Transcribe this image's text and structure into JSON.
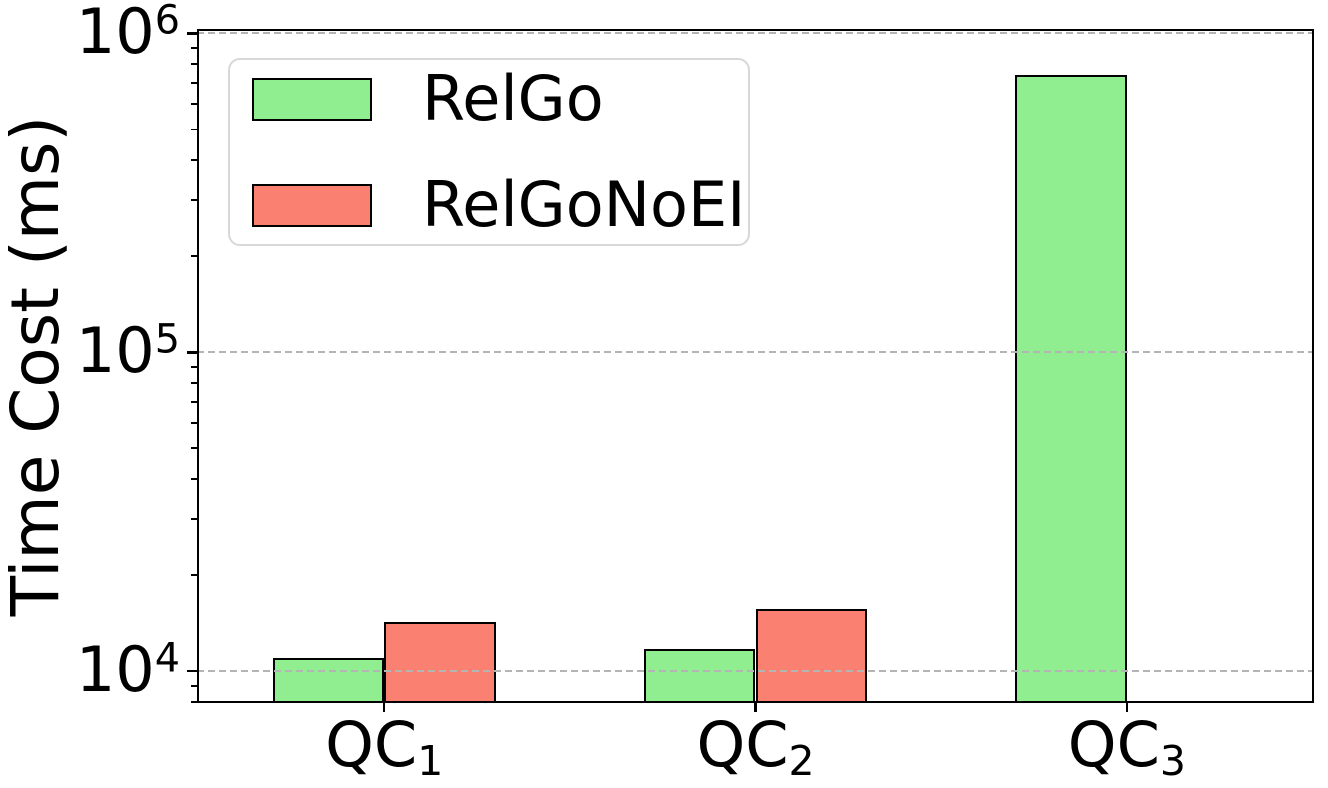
{
  "chart_data": {
    "type": "bar",
    "title": "",
    "xlabel": "",
    "ylabel": "Time Cost (ms)",
    "yscale": "log",
    "ylim": [
      7940,
      1033000
    ],
    "grid": {
      "axis": "y",
      "which": "major",
      "linestyle": "dashed",
      "color": "#b4b4b4",
      "drawn_over_bars": true
    },
    "categories": [
      {
        "base": "QC",
        "sub": "1"
      },
      {
        "base": "QC",
        "sub": "2"
      },
      {
        "base": "QC",
        "sub": "3"
      }
    ],
    "series": [
      {
        "name": "RelGo",
        "color": "#90EE90",
        "edge_color": "#000000",
        "values": [
          11000,
          11700,
          740000
        ]
      },
      {
        "name": "RelGoNoEI",
        "color": "#FA8072",
        "edge_color": "#000000",
        "values": [
          14300,
          15600,
          null
        ]
      }
    ],
    "yticks": [
      {
        "mantissa": "10",
        "exponent": "4",
        "value": 10000
      },
      {
        "mantissa": "10",
        "exponent": "5",
        "value": 100000
      },
      {
        "mantissa": "10",
        "exponent": "6",
        "value": 1000000
      }
    ],
    "yticks_minor_values": [
      8000,
      9000,
      20000,
      30000,
      40000,
      50000,
      60000,
      70000,
      80000,
      90000,
      200000,
      300000,
      400000,
      500000,
      600000,
      700000,
      800000,
      900000
    ],
    "legend": {
      "position": "upper left"
    },
    "colors": {
      "axes": "#000000",
      "background": "#ffffff",
      "legend_border": "#d8d8d8"
    }
  }
}
